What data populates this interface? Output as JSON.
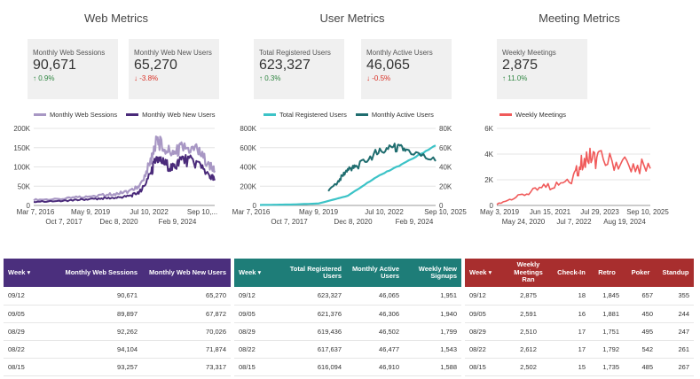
{
  "sections": {
    "web": "Web Metrics",
    "user": "User Metrics",
    "meeting": "Meeting Metrics"
  },
  "cards": [
    {
      "label": "Monthly Web Sessions",
      "value": "90,671",
      "change": "0.9%",
      "dir": "up"
    },
    {
      "label": "Monthly Web New Users",
      "value": "65,270",
      "change": "-3.8%",
      "dir": "down"
    },
    {
      "label": "Total Registered Users",
      "value": "623,327",
      "change": "0.3%",
      "dir": "up"
    },
    {
      "label": "Monthly Active Users",
      "value": "46,065",
      "change": "-0.5%",
      "dir": "down"
    },
    {
      "label": "Weekly Meetings",
      "value": "2,875",
      "change": "11.0%",
      "dir": "up"
    }
  ],
  "colors": {
    "web_light": "#a897c4",
    "web_dark": "#4a2a7a",
    "user_light": "#3cc3c7",
    "user_dark": "#1f6d6f",
    "meeting": "#f05a5a",
    "table_web": "#4b2f7d",
    "table_user": "#1e7d78",
    "table_meeting": "#a82e2e",
    "up": "#2e8540",
    "down": "#d93025"
  },
  "chart_data": [
    {
      "type": "line",
      "series": [
        {
          "name": "Monthly Web Sessions",
          "color": "#a897c4",
          "x": [
            "2016-03-07",
            "2017-06-01",
            "2018-06-01",
            "2019-05-09",
            "2020-03-01",
            "2020-12-08",
            "2021-06-01",
            "2021-12-01",
            "2022-03-01",
            "2022-07-10",
            "2023-01-01",
            "2023-06-01",
            "2024-02-09",
            "2024-09-10",
            "2025-01-01"
          ],
          "values": [
            15000,
            16000,
            22000,
            26000,
            30000,
            38000,
            55000,
            120000,
            170000,
            150000,
            135000,
            150000,
            145000,
            110000,
            90000
          ]
        },
        {
          "name": "Monthly Web New Users",
          "color": "#4a2a7a",
          "x": [
            "2016-03-07",
            "2017-06-01",
            "2018-06-01",
            "2019-05-09",
            "2020-03-01",
            "2020-12-08",
            "2021-06-01",
            "2021-12-01",
            "2022-03-01",
            "2022-07-10",
            "2023-01-01",
            "2023-06-01",
            "2024-02-09",
            "2024-09-10",
            "2025-01-01"
          ],
          "values": [
            10000,
            11000,
            15000,
            18000,
            20000,
            25000,
            38000,
            85000,
            125000,
            110000,
            95000,
            120000,
            110000,
            80000,
            65000
          ]
        }
      ],
      "x_ticks_top": [
        "Mar 7, 2016",
        "May 9, 2019",
        "Jul 10, 2022",
        "Sep 10,..."
      ],
      "x_ticks_bottom": [
        "Oct 7, 2017",
        "Dec 8, 2020",
        "Feb 9, 2024"
      ],
      "y_ticks": [
        "0",
        "50K",
        "100K",
        "150K",
        "200K"
      ],
      "ylim": [
        0,
        200000
      ],
      "grid": true,
      "legend": "top"
    },
    {
      "type": "line",
      "series": [
        {
          "name": "Total Registered Users",
          "color": "#3cc3c7",
          "axis": "left",
          "x": [
            "2016-03-07",
            "2018-01-01",
            "2019-05-09",
            "2020-12-08",
            "2022-07-10",
            "2024-02-09",
            "2025-09-10"
          ],
          "values": [
            5000,
            10000,
            20000,
            100000,
            300000,
            450000,
            623327
          ]
        },
        {
          "name": "Monthly Active Users",
          "color": "#1f6d6f",
          "axis": "right",
          "x": [
            "2016-03-07",
            "2018-01-01",
            "2019-05-09",
            "2020-06-01",
            "2020-12-08",
            "2021-06-01",
            "2022-07-10",
            "2023-06-01",
            "2024-02-09",
            "2025-09-10"
          ],
          "values": [
            1000,
            2000,
            5000,
            25000,
            38000,
            40000,
            55000,
            60000,
            58000,
            46065
          ]
        }
      ],
      "x_ticks_top": [
        "Mar 7, 2016",
        "May 9, 2019",
        "Jul 10, 2022",
        "Sep 10, 2025"
      ],
      "x_ticks_bottom": [
        "Oct 7, 2017",
        "Dec 8, 2020",
        "Feb 9, 2024"
      ],
      "y_ticks_left": [
        "0",
        "200K",
        "400K",
        "600K",
        "800K"
      ],
      "y_ticks_right": [
        "0",
        "20K",
        "40K",
        "60K",
        "80K"
      ],
      "ylim_left": [
        0,
        800000
      ],
      "ylim_right": [
        0,
        80000
      ],
      "grid": true,
      "legend": "top"
    },
    {
      "type": "line",
      "series": [
        {
          "name": "Weekly Meetings",
          "color": "#f05a5a",
          "x": [
            "2019-05-03",
            "2020-05-24",
            "2021-06-15",
            "2022-07-07",
            "2023-01-01",
            "2023-07-29",
            "2024-08-19",
            "2025-09-10"
          ],
          "values": [
            100,
            800,
            1500,
            2200,
            3800,
            3600,
            3200,
            2875
          ]
        }
      ],
      "x_ticks_top": [
        "May 3, 2019",
        "Jun 15, 2021",
        "Jul 29, 2023",
        "Sep 10, 2025"
      ],
      "x_ticks_bottom": [
        "May 24, 2020",
        "Jul 7, 2022",
        "Aug 19, 2024"
      ],
      "y_ticks": [
        "0",
        "2K",
        "4K",
        "6K"
      ],
      "ylim": [
        0,
        6000
      ],
      "grid": true,
      "legend": "top"
    }
  ],
  "tables": {
    "web": {
      "headers": [
        "Week ▾",
        "Monthly Web Sessions",
        "Monthly Web New Users"
      ],
      "rows": [
        [
          "09/12",
          "90,671",
          "65,270"
        ],
        [
          "09/05",
          "89,897",
          "67,872"
        ],
        [
          "08/29",
          "92,262",
          "70,026"
        ],
        [
          "08/22",
          "94,104",
          "71,874"
        ],
        [
          "08/15",
          "93,257",
          "73,317"
        ]
      ]
    },
    "user": {
      "headers": [
        "Week ▾",
        "Total Registered Users",
        "Monthly Active Users",
        "Weekly New Signups"
      ],
      "rows": [
        [
          "09/12",
          "623,327",
          "46,065",
          "1,951"
        ],
        [
          "09/05",
          "621,376",
          "46,306",
          "1,940"
        ],
        [
          "08/29",
          "619,436",
          "46,502",
          "1,799"
        ],
        [
          "08/22",
          "617,637",
          "46,477",
          "1,543"
        ],
        [
          "08/15",
          "616,094",
          "46,910",
          "1,588"
        ]
      ]
    },
    "meeting": {
      "headers": [
        "Week ▾",
        "Weekly Meetings Ran",
        "Check-In",
        "Retro",
        "Poker",
        "Standup"
      ],
      "rows": [
        [
          "09/12",
          "2,875",
          "18",
          "1,845",
          "657",
          "355"
        ],
        [
          "09/05",
          "2,591",
          "16",
          "1,881",
          "450",
          "244"
        ],
        [
          "08/29",
          "2,510",
          "17",
          "1,751",
          "495",
          "247"
        ],
        [
          "08/22",
          "2,612",
          "17",
          "1,792",
          "542",
          "261"
        ],
        [
          "08/15",
          "2,502",
          "15",
          "1,735",
          "485",
          "267"
        ]
      ]
    }
  }
}
